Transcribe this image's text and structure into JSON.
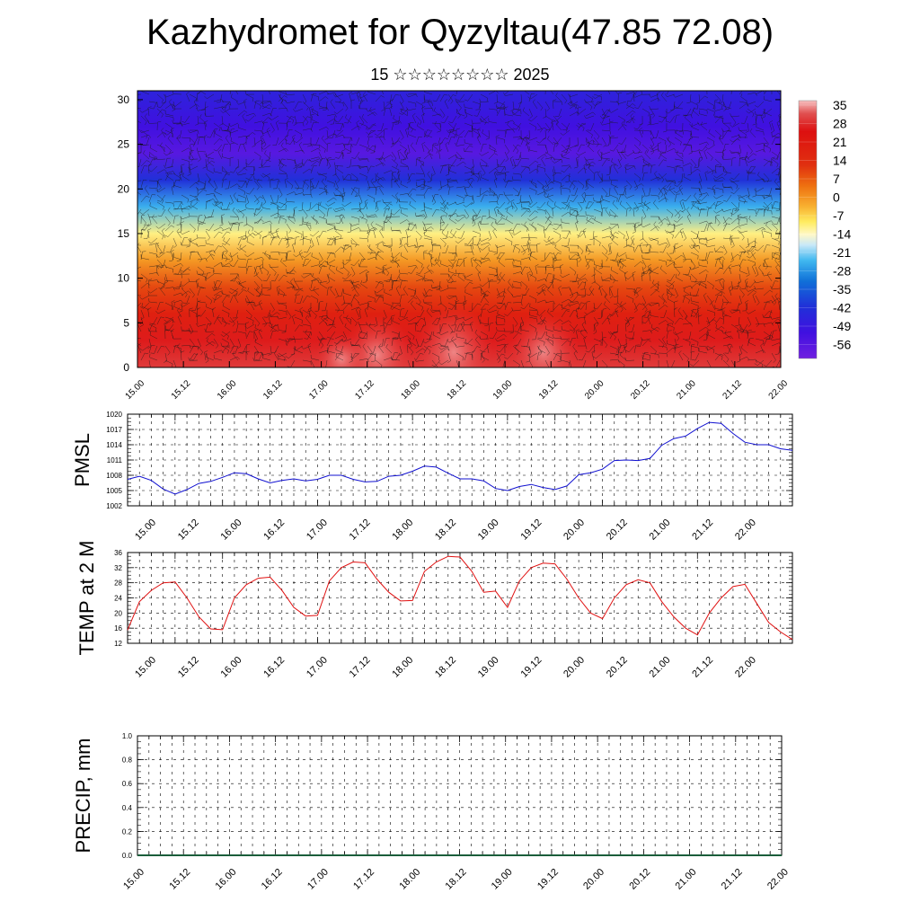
{
  "title": "Kazhydromet for Qyzyltau(47.85 72.08)",
  "subtitle": "15 ☆☆☆☆☆☆☆☆ 2025",
  "colors": {
    "pmsl_line": "#1010d0",
    "temp_line": "#e01010",
    "precip_line": "#1a5e3a"
  },
  "x_tick_labels": [
    "15.00",
    "15.12",
    "16.00",
    "16.12",
    "17.00",
    "17.12",
    "18.00",
    "18.12",
    "19.00",
    "19.12",
    "20.00",
    "20.12",
    "21.00",
    "21.12",
    "22.00"
  ],
  "colorbar_labels": [
    "35",
    "28",
    "21",
    "14",
    "7",
    "0",
    "-7",
    "-14",
    "-21",
    "-28",
    "-35",
    "-42",
    "-49",
    "-56"
  ],
  "chart_data": [
    {
      "type": "heatmap",
      "name": "vertical temperature cross-section with wind barbs",
      "xlabel": "",
      "ylabel": "",
      "y_ticks": [
        "0",
        "5",
        "10",
        "15",
        "20",
        "25",
        "30"
      ],
      "ylim": [
        0,
        31
      ],
      "x_categories": [
        "15.00",
        "15.12",
        "16.00",
        "16.12",
        "17.00",
        "17.12",
        "18.00",
        "18.12",
        "19.00",
        "19.12",
        "20.00",
        "20.12",
        "21.00",
        "21.12",
        "22.00"
      ],
      "color_scale": [
        "35",
        "28",
        "21",
        "14",
        "7",
        "0",
        "-7",
        "-14",
        "-21",
        "-28",
        "-35",
        "-42",
        "-49",
        "-56"
      ],
      "color_range": [
        -60,
        38
      ],
      "profile_levels": [
        0,
        3,
        6,
        9,
        12,
        15,
        18,
        21,
        24,
        27,
        31
      ],
      "profile_temps": [
        30,
        27,
        22,
        15,
        5,
        -8,
        -25,
        -42,
        -56,
        -52,
        -46
      ]
    },
    {
      "type": "line",
      "ylabel": "PMSL",
      "y_ticks": [
        "1002",
        "1005",
        "1008",
        "1011",
        "1014",
        "1017",
        "1020"
      ],
      "ylim": [
        1002,
        1020
      ],
      "x_ticks": [
        "15.00",
        "15.12",
        "16.00",
        "16.12",
        "17.00",
        "17.12",
        "18.00",
        "18.12",
        "19.00",
        "19.12",
        "20.00",
        "20.12",
        "21.00",
        "21.12",
        "22.00"
      ],
      "x": [
        0,
        3,
        6,
        9,
        12,
        15,
        18,
        21,
        24,
        27,
        30,
        33,
        36,
        39,
        42,
        45,
        48,
        51,
        54,
        57,
        60,
        63,
        66,
        69,
        72,
        75,
        78,
        81,
        84,
        87,
        90,
        93,
        96,
        99,
        102,
        105,
        108,
        111,
        114,
        117,
        120,
        123,
        126,
        129,
        132,
        135,
        138,
        141,
        144,
        147,
        150,
        153,
        156,
        159,
        162,
        165,
        168
      ],
      "values": [
        1007.2,
        1007.8,
        1007.0,
        1005.3,
        1004.3,
        1005.2,
        1006.4,
        1006.8,
        1007.6,
        1008.5,
        1008.3,
        1007.3,
        1006.5,
        1007.0,
        1007.3,
        1006.9,
        1007.2,
        1008.0,
        1008.0,
        1007.2,
        1006.7,
        1006.8,
        1007.8,
        1008.0,
        1008.8,
        1009.8,
        1009.6,
        1008.4,
        1007.3,
        1007.3,
        1006.9,
        1005.4,
        1005.0,
        1005.8,
        1006.2,
        1005.6,
        1005.2,
        1005.9,
        1008.1,
        1008.5,
        1009.2,
        1010.9,
        1011.0,
        1010.9,
        1011.3,
        1013.9,
        1015.2,
        1015.7,
        1017.2,
        1018.4,
        1018.2,
        1016.2,
        1014.5,
        1014.0,
        1014.0,
        1013.2,
        1012.9
      ]
    },
    {
      "type": "line",
      "ylabel": "TEMP at 2 M",
      "y_ticks": [
        "12",
        "16",
        "20",
        "24",
        "28",
        "32",
        "36"
      ],
      "ylim": [
        12,
        36
      ],
      "x_ticks": [
        "15.00",
        "15.12",
        "16.00",
        "16.12",
        "17.00",
        "17.12",
        "18.00",
        "18.12",
        "19.00",
        "19.12",
        "20.00",
        "20.12",
        "21.00",
        "21.12",
        "22.00"
      ],
      "x": [
        0,
        3,
        6,
        9,
        12,
        15,
        18,
        21,
        24,
        27,
        30,
        33,
        36,
        39,
        42,
        45,
        48,
        51,
        54,
        57,
        60,
        63,
        66,
        69,
        72,
        75,
        78,
        81,
        84,
        87,
        90,
        93,
        96,
        99,
        102,
        105,
        108,
        111,
        114,
        117,
        120,
        123,
        126,
        129,
        132,
        135,
        138,
        141,
        144,
        147,
        150,
        153,
        156,
        159,
        162,
        165,
        168
      ],
      "values": [
        15.5,
        23.0,
        26.0,
        28.0,
        28.2,
        24.0,
        19.0,
        15.8,
        15.6,
        24.0,
        27.5,
        29.2,
        29.5,
        26.0,
        21.5,
        19.2,
        19.4,
        28.5,
        32.0,
        33.5,
        33.3,
        29.0,
        25.5,
        23.2,
        23.3,
        31.0,
        33.5,
        35.0,
        34.8,
        31.0,
        25.5,
        25.8,
        21.5,
        28.5,
        32.0,
        33.2,
        33.0,
        29.0,
        24.0,
        20.0,
        18.5,
        24.0,
        27.5,
        28.8,
        28.0,
        23.0,
        19.0,
        16.0,
        14.2,
        20.0,
        24.0,
        27.0,
        27.6,
        22.5,
        17.5,
        15.0,
        13.0
      ]
    },
    {
      "type": "line",
      "ylabel": "PRECIP, mm",
      "y_ticks": [
        "0.0",
        "0.2",
        "0.4",
        "0.6",
        "0.8",
        "1.0"
      ],
      "ylim": [
        0,
        1
      ],
      "x_ticks": [
        "15.00",
        "15.12",
        "16.00",
        "16.12",
        "17.00",
        "17.12",
        "18.00",
        "18.12",
        "19.00",
        "19.12",
        "20.00",
        "20.12",
        "21.00",
        "21.12",
        "22.00"
      ],
      "x": [
        0,
        168
      ],
      "values": [
        0,
        0
      ]
    }
  ]
}
